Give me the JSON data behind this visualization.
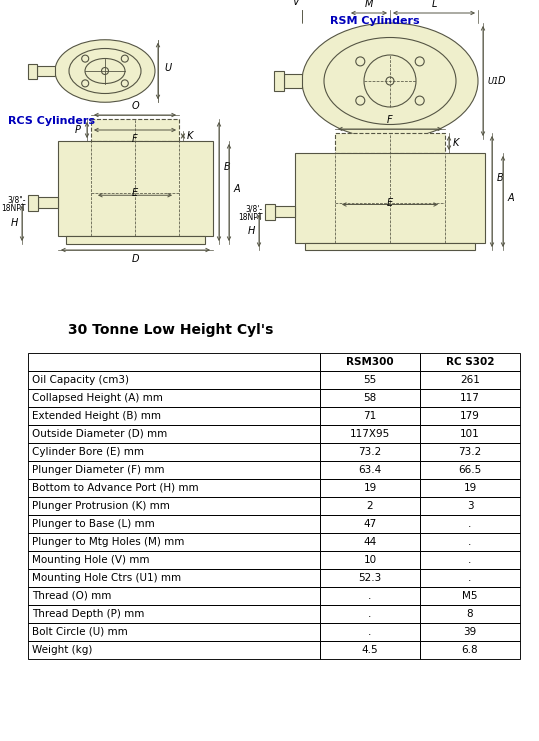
{
  "title": "30 Tonne Low Height Cyl's",
  "table_header": [
    "",
    "RSM300",
    "RC S302"
  ],
  "table_rows": [
    [
      "Oil Capacity (cm3)",
      "55",
      "261"
    ],
    [
      "Collapsed Height (A) mm",
      "58",
      "117"
    ],
    [
      "Extended Height (B) mm",
      "71",
      "179"
    ],
    [
      "Outside Diameter (D) mm",
      "117X95",
      "101"
    ],
    [
      "Cylinder Bore (E) mm",
      "73.2",
      "73.2"
    ],
    [
      "Plunger Diameter (F) mm",
      "63.4",
      "66.5"
    ],
    [
      "Bottom to Advance Port (H) mm",
      "19",
      "19"
    ],
    [
      "Plunger Protrusion (K) mm",
      "2",
      "3"
    ],
    [
      "Plunger to Base (L) mm",
      "47",
      "."
    ],
    [
      "Plunger to Mtg Holes (M) mm",
      "44",
      "."
    ],
    [
      "Mounting Hole (V) mm",
      "10",
      "."
    ],
    [
      "Mounting Hole Ctrs (U1) mm",
      "52.3",
      "."
    ],
    [
      "Thread (O) mm",
      ".",
      "M5"
    ],
    [
      "Thread Depth (P) mm",
      ".",
      "8"
    ],
    [
      "Bolt Circle (U) mm",
      ".",
      "39"
    ],
    [
      "Weight (kg)",
      "4.5",
      "6.8"
    ]
  ],
  "background_color": "#ffffff",
  "text_color": "#000000",
  "rcs_label_color": "#0000bb",
  "rsm_label_color": "#0000bb",
  "diagram_bg": "#efefcc",
  "diagram_line": "#555544"
}
